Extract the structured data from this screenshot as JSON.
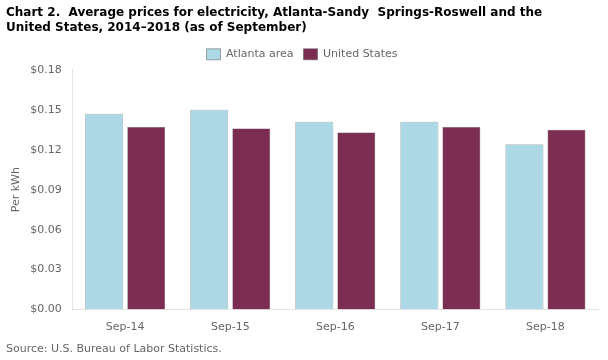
{
  "chart_data": {
    "type": "bar",
    "title": "Chart 2.  Average prices for electricity, Atlanta-Sandy  Springs-Roswell and the\nUnited States, 2014–2018 (as of September)",
    "ylabel": "Per kWh",
    "source": "Source: U.S. Bureau of Labor Statistics.",
    "categories": [
      "Sep-14",
      "Sep-15",
      "Sep-16",
      "Sep-17",
      "Sep-18"
    ],
    "series": [
      {
        "name": "Atlanta area",
        "color": "#ADD8E6",
        "values": [
          0.147,
          0.15,
          0.141,
          0.141,
          0.124
        ]
      },
      {
        "name": "United States",
        "color": "#7B2D52",
        "values": [
          0.137,
          0.136,
          0.133,
          0.137,
          0.135
        ]
      }
    ],
    "ylim": [
      0.0,
      0.18
    ],
    "yticks": [
      {
        "value": 0.0,
        "label": "$0.00"
      },
      {
        "value": 0.03,
        "label": "$0.03"
      },
      {
        "value": 0.06,
        "label": "$0.06"
      },
      {
        "value": 0.09,
        "label": "$0.09"
      },
      {
        "value": 0.12,
        "label": "$0.12"
      },
      {
        "value": 0.15,
        "label": "$0.15"
      },
      {
        "value": 0.18,
        "label": "$0.18"
      }
    ],
    "grid": false,
    "legend": "top"
  }
}
